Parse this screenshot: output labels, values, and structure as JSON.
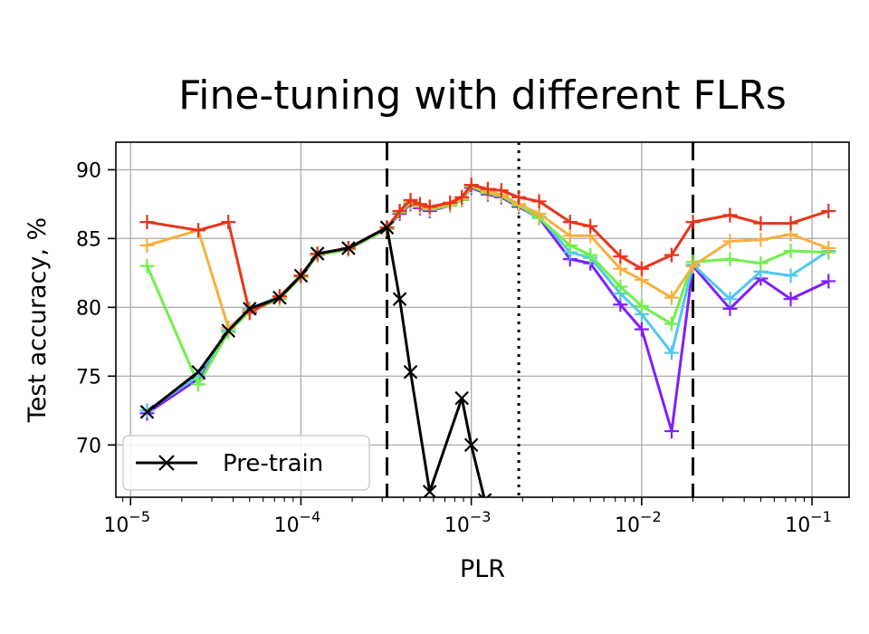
{
  "chart_data": {
    "type": "line",
    "title": "Fine-tuning with different FLRs",
    "xlabel": "PLR",
    "ylabel": "Test accuracy, %",
    "xscale": "log",
    "xlim": [
      8.2e-06,
      0.165
    ],
    "ylim": [
      66.2,
      92.0
    ],
    "x_ticks": [
      {
        "value": 1e-05,
        "base": "10",
        "exp": "−5"
      },
      {
        "value": 0.0001,
        "base": "10",
        "exp": "−4"
      },
      {
        "value": 0.001,
        "base": "10",
        "exp": "−3"
      },
      {
        "value": 0.01,
        "base": "10",
        "exp": "−2"
      },
      {
        "value": 0.1,
        "base": "10",
        "exp": "−1"
      }
    ],
    "y_ticks": [
      70,
      75,
      80,
      85,
      90
    ],
    "grid": true,
    "legend": {
      "position": "lower-left",
      "entries": [
        {
          "label": "Pre-train",
          "color": "#000000",
          "marker": "x"
        }
      ]
    },
    "vlines": [
      {
        "x": 0.00032,
        "style": "dashed",
        "color": "#000000"
      },
      {
        "x": 0.0019,
        "style": "dotted",
        "color": "#000000"
      },
      {
        "x": 0.02,
        "style": "dashed",
        "color": "#000000"
      }
    ],
    "series": [
      {
        "color": "#7f1fff",
        "marker": "+",
        "points": [
          [
            1.25e-05,
            72.3
          ],
          [
            2.5e-05,
            74.8
          ],
          [
            3.75e-05,
            78.5
          ],
          [
            5e-05,
            79.8
          ],
          [
            7.5e-05,
            80.7
          ],
          [
            0.0001,
            82.2
          ],
          [
            0.000125,
            83.8
          ],
          [
            0.00019,
            84.2
          ],
          [
            0.00032,
            85.7
          ],
          [
            0.00038,
            86.8
          ],
          [
            0.00044,
            87.5
          ],
          [
            0.0005,
            87.2
          ],
          [
            0.00057,
            87.0
          ],
          [
            0.00075,
            87.4
          ],
          [
            0.00088,
            87.8
          ],
          [
            0.001,
            88.7
          ],
          [
            0.00125,
            88.2
          ],
          [
            0.0015,
            88.0
          ],
          [
            0.0019,
            87.3
          ],
          [
            0.0025,
            86.5
          ],
          [
            0.0038,
            83.5
          ],
          [
            0.005,
            83.2
          ],
          [
            0.0075,
            80.2
          ],
          [
            0.01,
            78.4
          ],
          [
            0.015,
            71.0
          ],
          [
            0.02,
            83.0
          ],
          [
            0.033,
            79.9
          ],
          [
            0.05,
            82.1
          ],
          [
            0.075,
            80.6
          ],
          [
            0.125,
            81.9
          ]
        ]
      },
      {
        "color": "#4fc8f0",
        "marker": "+",
        "points": [
          [
            1.25e-05,
            72.5
          ],
          [
            2.5e-05,
            75.0
          ],
          [
            3.75e-05,
            78.3
          ],
          [
            5e-05,
            79.9
          ],
          [
            7.5e-05,
            80.8
          ],
          [
            0.0001,
            82.3
          ],
          [
            0.000125,
            83.9
          ],
          [
            0.00019,
            84.3
          ],
          [
            0.00032,
            85.8
          ],
          [
            0.00038,
            86.9
          ],
          [
            0.00044,
            87.6
          ],
          [
            0.0005,
            87.3
          ],
          [
            0.00057,
            87.1
          ],
          [
            0.00075,
            87.5
          ],
          [
            0.00088,
            87.9
          ],
          [
            0.001,
            88.8
          ],
          [
            0.00125,
            88.3
          ],
          [
            0.0015,
            88.1
          ],
          [
            0.0019,
            87.4
          ],
          [
            0.0025,
            86.6
          ],
          [
            0.0038,
            84.0
          ],
          [
            0.005,
            83.6
          ],
          [
            0.0075,
            81.0
          ],
          [
            0.01,
            79.5
          ],
          [
            0.015,
            76.7
          ],
          [
            0.02,
            83.1
          ],
          [
            0.033,
            80.6
          ],
          [
            0.05,
            82.6
          ],
          [
            0.075,
            82.3
          ],
          [
            0.125,
            84.1
          ]
        ]
      },
      {
        "color": "#6ff04a",
        "marker": "+",
        "points": [
          [
            1.25e-05,
            83.0
          ],
          [
            2.5e-05,
            74.4
          ],
          [
            3.75e-05,
            78.2
          ],
          [
            5e-05,
            79.7
          ],
          [
            7.5e-05,
            80.6
          ],
          [
            0.0001,
            82.2
          ],
          [
            0.000125,
            83.8
          ],
          [
            0.00019,
            84.2
          ],
          [
            0.00032,
            85.7
          ],
          [
            0.00038,
            86.9
          ],
          [
            0.00044,
            87.6
          ],
          [
            0.0005,
            87.3
          ],
          [
            0.00057,
            87.1
          ],
          [
            0.00075,
            87.4
          ],
          [
            0.00088,
            87.8
          ],
          [
            0.001,
            88.8
          ],
          [
            0.00125,
            88.3
          ],
          [
            0.0015,
            88.1
          ],
          [
            0.0019,
            87.4
          ],
          [
            0.0025,
            86.5
          ],
          [
            0.0038,
            84.5
          ],
          [
            0.005,
            83.8
          ],
          [
            0.0075,
            81.5
          ],
          [
            0.01,
            80.1
          ],
          [
            0.015,
            78.8
          ],
          [
            0.02,
            83.3
          ],
          [
            0.033,
            83.5
          ],
          [
            0.05,
            83.2
          ],
          [
            0.075,
            84.1
          ],
          [
            0.125,
            84.0
          ]
        ]
      },
      {
        "color": "#f5b042",
        "marker": "+",
        "points": [
          [
            1.25e-05,
            84.5
          ],
          [
            2.5e-05,
            85.6
          ],
          [
            3.75e-05,
            78.5
          ],
          [
            5e-05,
            79.8
          ],
          [
            7.5e-05,
            80.7
          ],
          [
            0.0001,
            82.3
          ],
          [
            0.000125,
            83.9
          ],
          [
            0.00019,
            84.3
          ],
          [
            0.00032,
            85.8
          ],
          [
            0.00038,
            87.0
          ],
          [
            0.00044,
            87.7
          ],
          [
            0.0005,
            87.4
          ],
          [
            0.00057,
            87.2
          ],
          [
            0.00075,
            87.5
          ],
          [
            0.00088,
            87.9
          ],
          [
            0.001,
            88.9
          ],
          [
            0.00125,
            88.4
          ],
          [
            0.0015,
            88.2
          ],
          [
            0.0019,
            87.5
          ],
          [
            0.0025,
            86.8
          ],
          [
            0.0038,
            85.2
          ],
          [
            0.005,
            85.2
          ],
          [
            0.0075,
            82.8
          ],
          [
            0.01,
            82.0
          ],
          [
            0.015,
            80.7
          ],
          [
            0.02,
            83.0
          ],
          [
            0.033,
            84.8
          ],
          [
            0.05,
            84.9
          ],
          [
            0.075,
            85.3
          ],
          [
            0.125,
            84.3
          ]
        ]
      },
      {
        "color": "#e8341c",
        "marker": "+",
        "points": [
          [
            1.25e-05,
            86.2
          ],
          [
            2.5e-05,
            85.6
          ],
          [
            3.75e-05,
            86.2
          ],
          [
            5e-05,
            79.6
          ],
          [
            7.5e-05,
            80.8
          ],
          [
            0.0001,
            82.3
          ],
          [
            0.000125,
            83.9
          ],
          [
            0.00019,
            84.3
          ],
          [
            0.00032,
            85.8
          ],
          [
            0.00038,
            87.0
          ],
          [
            0.00044,
            87.8
          ],
          [
            0.0005,
            87.5
          ],
          [
            0.00057,
            87.3
          ],
          [
            0.00075,
            87.6
          ],
          [
            0.00088,
            88.0
          ],
          [
            0.001,
            88.9
          ],
          [
            0.00125,
            88.6
          ],
          [
            0.0015,
            88.5
          ],
          [
            0.0019,
            88.0
          ],
          [
            0.0025,
            87.7
          ],
          [
            0.0038,
            86.2
          ],
          [
            0.005,
            85.9
          ],
          [
            0.0075,
            83.7
          ],
          [
            0.01,
            82.8
          ],
          [
            0.015,
            83.8
          ],
          [
            0.02,
            86.2
          ],
          [
            0.033,
            86.7
          ],
          [
            0.05,
            86.1
          ],
          [
            0.075,
            86.1
          ],
          [
            0.125,
            87.0
          ]
        ]
      },
      {
        "name": "Pre-train",
        "color": "#000000",
        "marker": "x",
        "points": [
          [
            1.25e-05,
            72.4
          ],
          [
            2.5e-05,
            75.3
          ],
          [
            3.75e-05,
            78.3
          ],
          [
            5e-05,
            79.9
          ],
          [
            7.5e-05,
            80.7
          ],
          [
            0.0001,
            82.3
          ],
          [
            0.000125,
            83.9
          ],
          [
            0.00019,
            84.3
          ],
          [
            0.00032,
            85.8
          ],
          [
            0.00038,
            80.6
          ],
          [
            0.00044,
            75.3
          ],
          [
            0.00057,
            66.6
          ],
          [
            0.00088,
            73.4
          ],
          [
            0.001,
            70.0
          ],
          [
            0.0012,
            66.0
          ]
        ]
      }
    ]
  }
}
